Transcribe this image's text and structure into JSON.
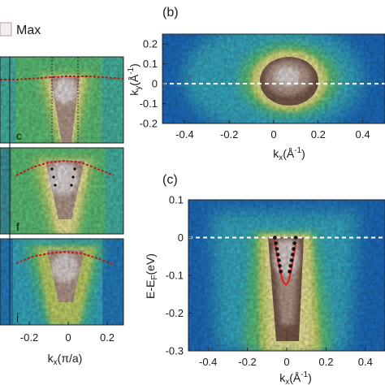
{
  "colors": {
    "cmap": [
      "#0c2f8c",
      "#1d6fc4",
      "#38b0c8",
      "#5fc77b",
      "#c8d96b",
      "#f1ec9c",
      "#b79d8e",
      "#7a5a4c",
      "#f3eef0"
    ],
    "dispersion": "#e0201a",
    "marker": "#111111",
    "fermi": "#ffffff"
  },
  "legend": {
    "max_label": "Max"
  },
  "chart_data": [
    {
      "panel": "left-column",
      "type": "heatmap",
      "title": "",
      "xlabel": "k_x(π/a)",
      "xlabel_main": "k",
      "xlabel_sub": "x",
      "xlabel_tail": "(π/a)",
      "xticks": [
        "-0.2",
        "0",
        "0.2"
      ],
      "xlim": [
        -0.35,
        0.35
      ],
      "grid": false,
      "subpanels": [
        {
          "label": "c"
        },
        {
          "label": "f"
        },
        {
          "label": "i"
        }
      ]
    },
    {
      "panel": "b",
      "label": "(b)",
      "type": "heatmap",
      "title": "",
      "xlabel": "k_x(Å⁻¹)",
      "xlabel_main": "k",
      "xlabel_sub": "x",
      "xlabel_tail": "(Å",
      "xlabel_sup": "-1",
      "xlabel_close": ")",
      "ylabel": "k_y(Å⁻¹)",
      "ylabel_main": "k",
      "ylabel_sub": "y",
      "ylabel_tail": "(Å",
      "ylabel_sup": "-1",
      "ylabel_close": ")",
      "xlim": [
        -0.5,
        0.5
      ],
      "ylim": [
        -0.2,
        0.25
      ],
      "xticks": [
        "-0.4",
        "-0.2",
        "0",
        "0.2",
        "0.4"
      ],
      "yticks": [
        "0.2",
        "0.1",
        "0",
        "-0.1",
        "-0.2"
      ],
      "reference_line": {
        "axis": "y",
        "value": 0,
        "style": "dashed",
        "color": "white"
      },
      "grid": false
    },
    {
      "panel": "c",
      "label": "(c)",
      "type": "heatmap",
      "title": "",
      "xlabel": "k_x(Å⁻¹)",
      "xlabel_main": "k",
      "xlabel_sub": "x",
      "xlabel_tail": "(Å",
      "xlabel_sup": "-1",
      "xlabel_close": ")",
      "ylabel": "E-E_F(eV)",
      "ylabel_main": "E-E",
      "ylabel_sub": "F",
      "ylabel_tail": "(eV)",
      "xlim": [
        -0.5,
        0.5
      ],
      "ylim": [
        -0.3,
        0.1
      ],
      "xticks": [
        "-0.4",
        "-0.2",
        "0",
        "0.2",
        "0.4"
      ],
      "yticks": [
        "0.1",
        "0",
        "-0.1",
        "-0.2",
        "-0.3"
      ],
      "reference_line": {
        "axis": "y",
        "value": 0,
        "style": "dashed",
        "color": "white"
      },
      "series": [
        {
          "kind": "parabola-fit",
          "x": [
            -0.065,
            -0.055,
            -0.045,
            -0.035,
            -0.025,
            -0.015,
            -0.005,
            0.005,
            0.015,
            0.025,
            0.035,
            0.045
          ],
          "y": [
            0.0,
            -0.03,
            -0.06,
            -0.085,
            -0.105,
            -0.12,
            -0.125,
            -0.12,
            -0.105,
            -0.08,
            -0.05,
            -0.02
          ]
        },
        {
          "kind": "markers",
          "x": [
            -0.06,
            -0.055,
            -0.05,
            -0.045,
            -0.04,
            -0.035,
            -0.03,
            0.015,
            0.02,
            0.025,
            0.03,
            0.035,
            0.04,
            0.045
          ],
          "y": [
            0.0,
            -0.015,
            -0.03,
            -0.045,
            -0.06,
            -0.075,
            -0.09,
            -0.09,
            -0.075,
            -0.06,
            -0.045,
            -0.03,
            -0.015,
            0.0
          ]
        }
      ],
      "grid": false
    }
  ]
}
